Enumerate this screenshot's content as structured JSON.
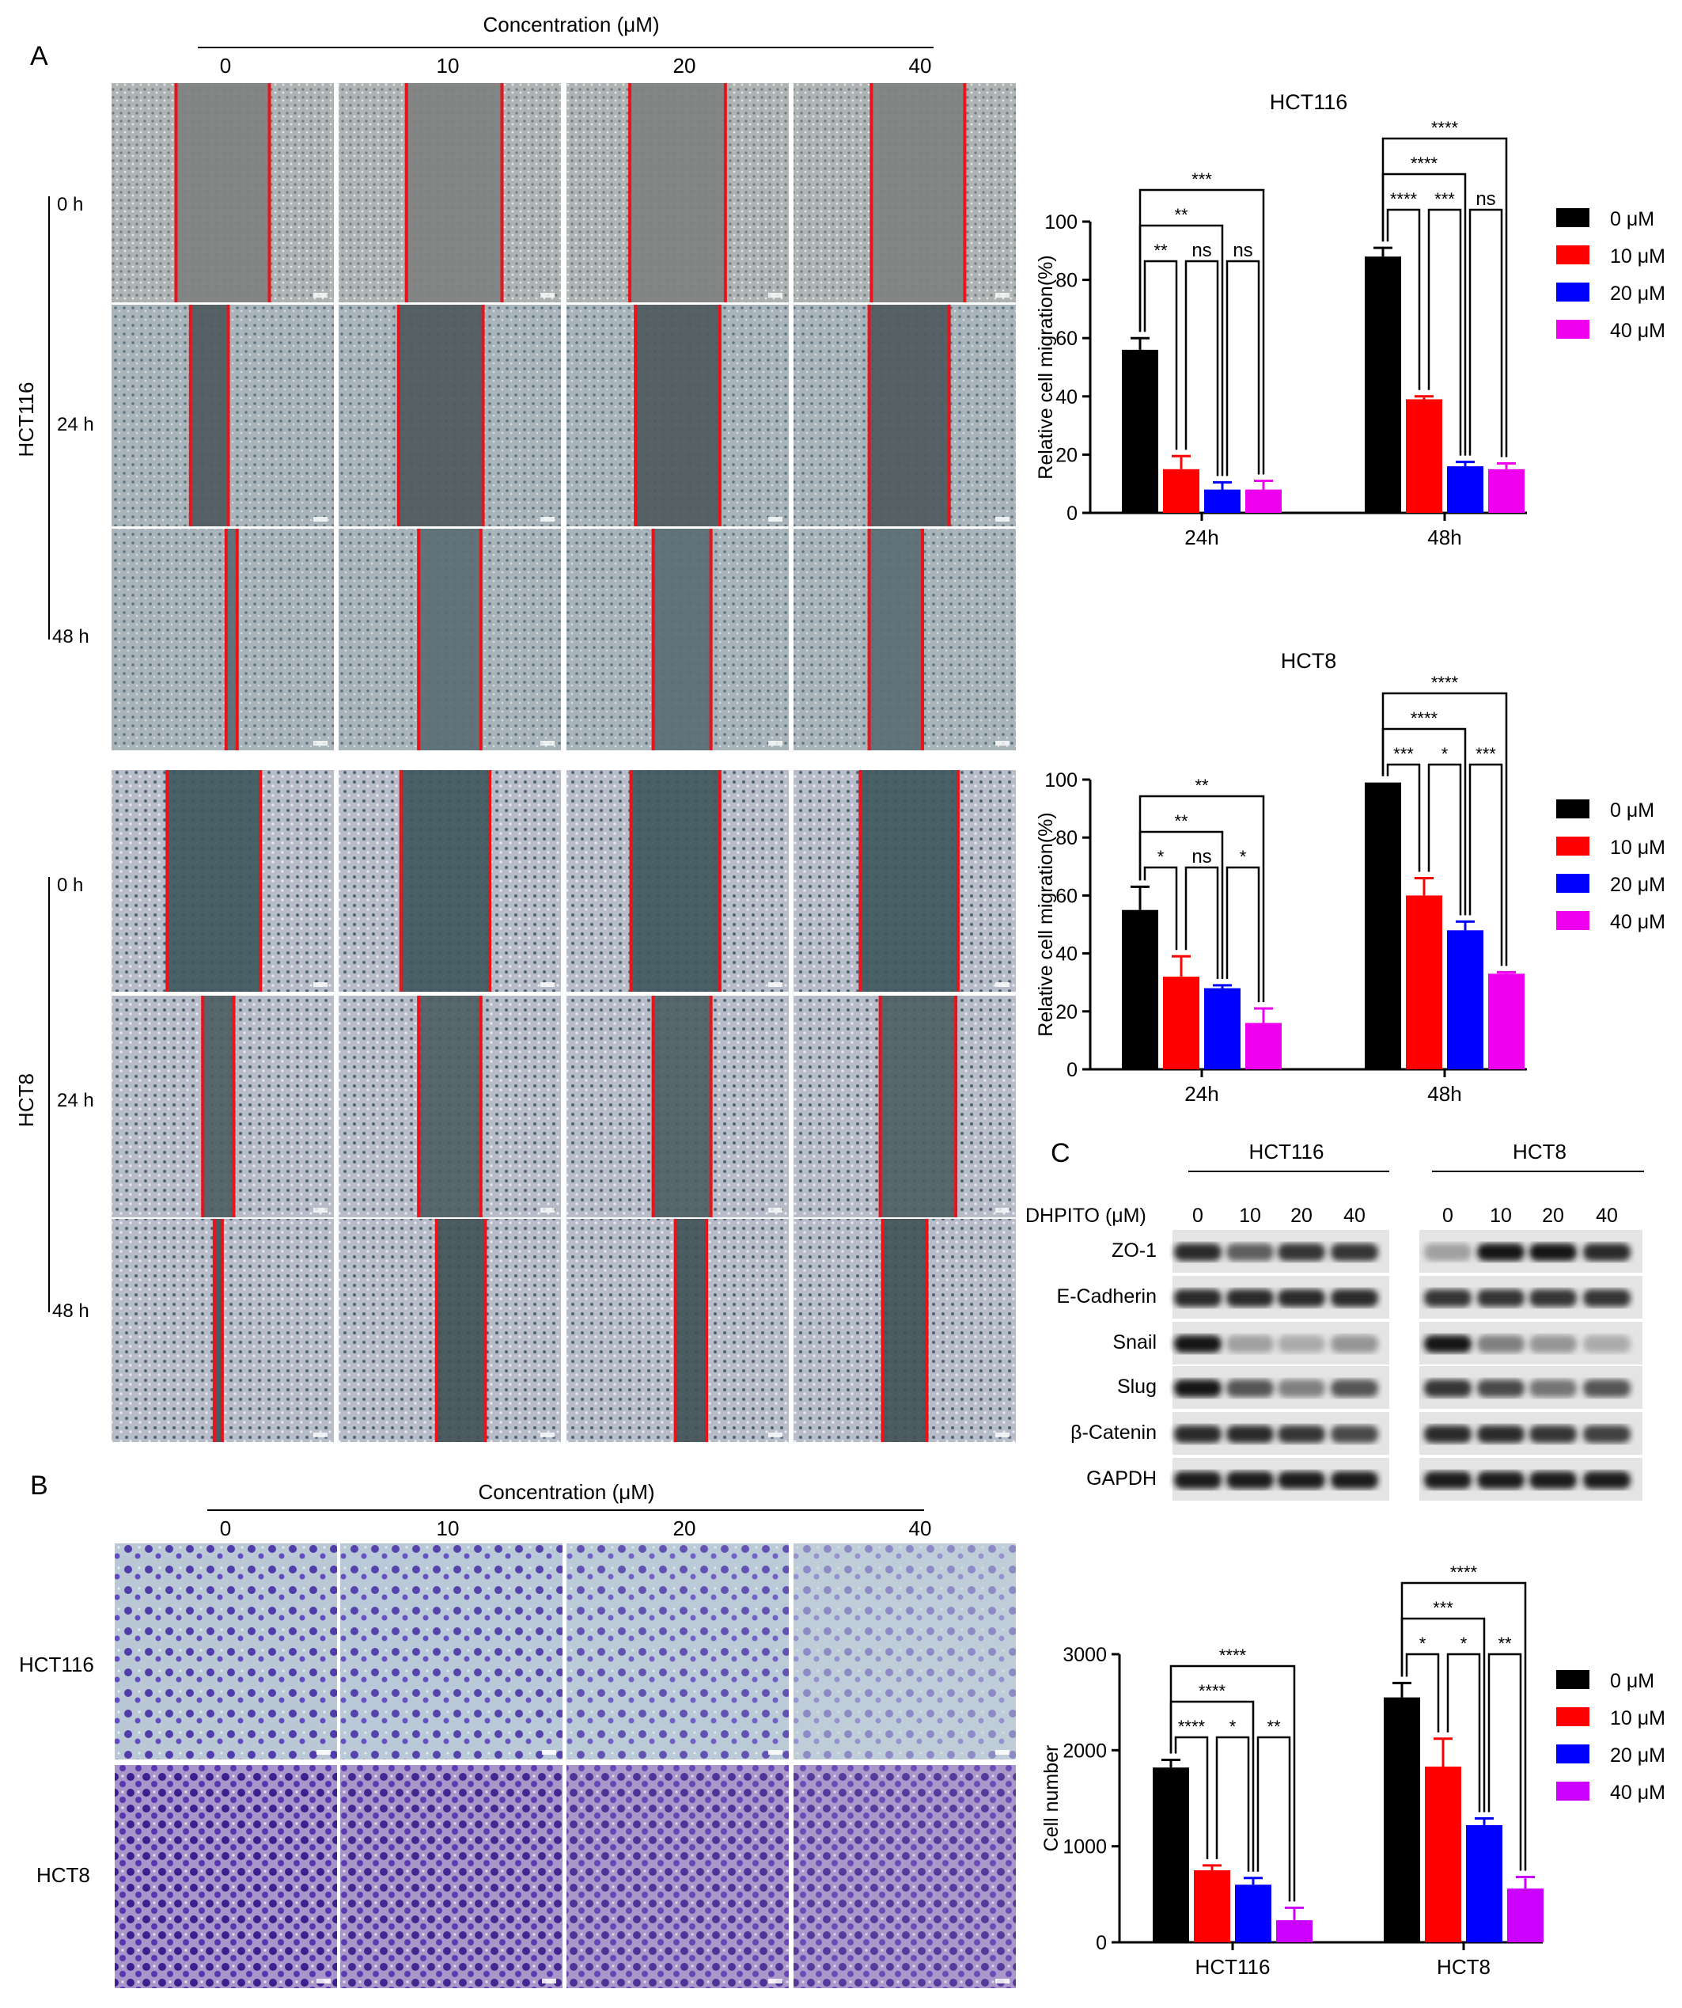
{
  "panels": {
    "A": {
      "letter": "A",
      "header": "Concentration (μM)",
      "conc": [
        "0",
        "10",
        "20",
        "40"
      ],
      "groups": [
        {
          "name": "HCT116",
          "times": [
            "0 h",
            "24 h",
            "48 h"
          ]
        },
        {
          "name": "HCT8",
          "times": [
            "0 h",
            "24 h",
            "48 h"
          ]
        }
      ]
    },
    "B": {
      "letter": "B",
      "header": "Concentration (μM)",
      "conc": [
        "0",
        "10",
        "20",
        "40"
      ],
      "rows": [
        "HCT116",
        "HCT8"
      ]
    },
    "C": {
      "letter": "C",
      "treatment_label": "DHPITO (μM)",
      "cell_lines": [
        "HCT116",
        "HCT8"
      ],
      "doses": [
        "0",
        "10",
        "20",
        "40"
      ],
      "proteins": [
        "ZO-1",
        "E-Cadherin",
        "Snail",
        "Slug",
        "β-Catenin",
        "GAPDH"
      ],
      "relative_intensity": {
        "HCT116": [
          [
            0.9,
            0.65,
            0.85,
            0.85
          ],
          [
            0.9,
            0.9,
            0.9,
            0.9
          ],
          [
            1.0,
            0.35,
            0.3,
            0.4
          ],
          [
            1.0,
            0.7,
            0.5,
            0.7
          ],
          [
            0.9,
            0.9,
            0.85,
            0.75
          ],
          [
            0.95,
            0.95,
            0.95,
            0.95
          ]
        ],
        "HCT8": [
          [
            0.35,
            1.0,
            1.0,
            0.9
          ],
          [
            0.85,
            0.85,
            0.85,
            0.85
          ],
          [
            1.0,
            0.5,
            0.4,
            0.3
          ],
          [
            0.85,
            0.75,
            0.55,
            0.7
          ],
          [
            0.9,
            0.9,
            0.85,
            0.8
          ],
          [
            0.95,
            0.95,
            0.95,
            0.95
          ]
        ]
      }
    }
  },
  "legend": {
    "labels": [
      "0 μM",
      "10 μM",
      "20 μM",
      "40 μM"
    ],
    "colors": [
      "#000000",
      "#ff0000",
      "#0000ff",
      "#ee00ee"
    ],
    "colors_d": [
      "#000000",
      "#ff0000",
      "#0000ff",
      "#cc00ff"
    ]
  },
  "chart_data": [
    {
      "type": "bar",
      "title": "HCT116",
      "ylabel": "Relative cell migration(%)",
      "categories": [
        "24h",
        "48h"
      ],
      "ylim": [
        0,
        100
      ],
      "yticks": [
        0,
        20,
        40,
        60,
        80,
        100
      ],
      "series": [
        {
          "name": "0 μM",
          "values": [
            56,
            88
          ],
          "errors": [
            4,
            3
          ]
        },
        {
          "name": "10 μM",
          "values": [
            15,
            39
          ],
          "errors": [
            4.5,
            1
          ]
        },
        {
          "name": "20 μM",
          "values": [
            8,
            16
          ],
          "errors": [
            2.5,
            1.5
          ]
        },
        {
          "name": "40 μM",
          "values": [
            8,
            15
          ],
          "errors": [
            3,
            2
          ]
        }
      ],
      "significance": [
        {
          "group": 0,
          "from": 0,
          "to": 1,
          "label": "**"
        },
        {
          "group": 0,
          "from": 1,
          "to": 2,
          "label": "ns"
        },
        {
          "group": 0,
          "from": 2,
          "to": 3,
          "label": "ns"
        },
        {
          "group": 0,
          "from": 0,
          "to": 2,
          "label": "**"
        },
        {
          "group": 0,
          "from": 0,
          "to": 3,
          "label": "***"
        },
        {
          "group": 1,
          "from": 0,
          "to": 1,
          "label": "****"
        },
        {
          "group": 1,
          "from": 1,
          "to": 2,
          "label": "***"
        },
        {
          "group": 1,
          "from": 2,
          "to": 3,
          "label": "ns"
        },
        {
          "group": 1,
          "from": 0,
          "to": 2,
          "label": "****"
        },
        {
          "group": 1,
          "from": 0,
          "to": 3,
          "label": "****"
        }
      ]
    },
    {
      "type": "bar",
      "title": "HCT8",
      "ylabel": "Relative cell migration(%)",
      "categories": [
        "24h",
        "48h"
      ],
      "ylim": [
        0,
        100
      ],
      "yticks": [
        0,
        20,
        40,
        60,
        80,
        100
      ],
      "series": [
        {
          "name": "0 μM",
          "values": [
            55,
            99
          ],
          "errors": [
            8,
            0
          ]
        },
        {
          "name": "10 μM",
          "values": [
            32,
            60
          ],
          "errors": [
            7,
            6
          ]
        },
        {
          "name": "20 μM",
          "values": [
            28,
            48
          ],
          "errors": [
            1,
            3
          ]
        },
        {
          "name": "40 μM",
          "values": [
            16,
            33
          ],
          "errors": [
            5,
            0.5
          ]
        }
      ],
      "significance": [
        {
          "group": 0,
          "from": 0,
          "to": 1,
          "label": "*"
        },
        {
          "group": 0,
          "from": 1,
          "to": 2,
          "label": "ns"
        },
        {
          "group": 0,
          "from": 2,
          "to": 3,
          "label": "*"
        },
        {
          "group": 0,
          "from": 0,
          "to": 2,
          "label": "**"
        },
        {
          "group": 0,
          "from": 0,
          "to": 3,
          "label": "**"
        },
        {
          "group": 1,
          "from": 0,
          "to": 1,
          "label": "***"
        },
        {
          "group": 1,
          "from": 1,
          "to": 2,
          "label": "*"
        },
        {
          "group": 1,
          "from": 2,
          "to": 3,
          "label": "***"
        },
        {
          "group": 1,
          "from": 0,
          "to": 2,
          "label": "****"
        },
        {
          "group": 1,
          "from": 0,
          "to": 3,
          "label": "****"
        }
      ]
    },
    {
      "type": "bar",
      "title": "",
      "ylabel": "Cell number",
      "categories": [
        "HCT116",
        "HCT8"
      ],
      "ylim": [
        0,
        3000
      ],
      "yticks": [
        0,
        1000,
        2000,
        3000
      ],
      "series": [
        {
          "name": "0 μM",
          "values": [
            1820,
            2550
          ],
          "errors": [
            80,
            150
          ]
        },
        {
          "name": "10 μM",
          "values": [
            750,
            1830
          ],
          "errors": [
            50,
            290
          ]
        },
        {
          "name": "20 μM",
          "values": [
            600,
            1220
          ],
          "errors": [
            70,
            70
          ]
        },
        {
          "name": "40 μM",
          "values": [
            230,
            560
          ],
          "errors": [
            130,
            120
          ]
        }
      ],
      "significance": [
        {
          "group": 0,
          "from": 0,
          "to": 1,
          "label": "****"
        },
        {
          "group": 0,
          "from": 1,
          "to": 2,
          "label": "*"
        },
        {
          "group": 0,
          "from": 2,
          "to": 3,
          "label": "**"
        },
        {
          "group": 0,
          "from": 0,
          "to": 2,
          "label": "****"
        },
        {
          "group": 0,
          "from": 0,
          "to": 3,
          "label": "****"
        },
        {
          "group": 1,
          "from": 0,
          "to": 1,
          "label": "*"
        },
        {
          "group": 1,
          "from": 1,
          "to": 2,
          "label": "*"
        },
        {
          "group": 1,
          "from": 2,
          "to": 3,
          "label": "**"
        },
        {
          "group": 1,
          "from": 0,
          "to": 2,
          "label": "***"
        },
        {
          "group": 1,
          "from": 0,
          "to": 3,
          "label": "****"
        }
      ]
    }
  ]
}
